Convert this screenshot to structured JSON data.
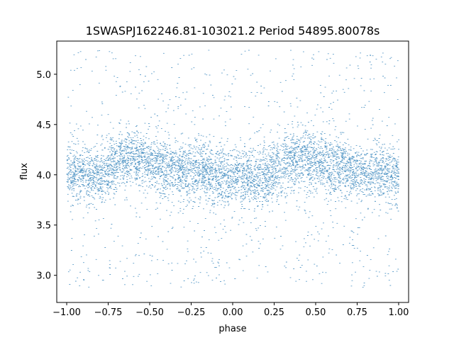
{
  "chart_data": {
    "type": "scatter",
    "title": "1SWASPJ162246.81-103021.2 Period 54895.80078s",
    "xlabel": "phase",
    "ylabel": "flux",
    "xlim": [
      -1.06,
      1.06
    ],
    "ylim": [
      2.73,
      5.33
    ],
    "x_ticks": [
      -1.0,
      -0.75,
      -0.5,
      -0.25,
      0.0,
      0.25,
      0.5,
      0.75,
      1.0
    ],
    "x_tick_labels": [
      "−1.00",
      "−0.75",
      "−0.50",
      "−0.25",
      "0.00",
      "0.25",
      "0.50",
      "0.75",
      "1.00"
    ],
    "y_ticks": [
      3.0,
      3.5,
      4.0,
      4.5,
      5.0
    ],
    "y_tick_labels": [
      "3.0",
      "3.5",
      "4.0",
      "4.5",
      "5.0"
    ],
    "grid": false,
    "legend": "none",
    "marker_color": "#1f77b4",
    "series": [
      {
        "phase_profile": {
          "x": [
            -1.0,
            -0.9,
            -0.8,
            -0.7,
            -0.6,
            -0.5,
            -0.4,
            -0.3,
            -0.2,
            -0.1,
            0.0,
            0.1,
            0.2,
            0.3,
            0.4,
            0.5,
            0.6,
            0.7,
            0.8,
            0.9,
            1.0
          ],
          "y": [
            4.02,
            4.0,
            3.98,
            4.12,
            4.17,
            4.13,
            4.09,
            4.05,
            4.03,
            4.0,
            3.99,
            3.98,
            3.98,
            4.12,
            4.17,
            4.13,
            4.09,
            4.05,
            4.03,
            4.01,
            4.02
          ]
        },
        "scatter_sd": 0.14,
        "outlier_range": [
          2.88,
          5.24
        ]
      }
    ]
  }
}
